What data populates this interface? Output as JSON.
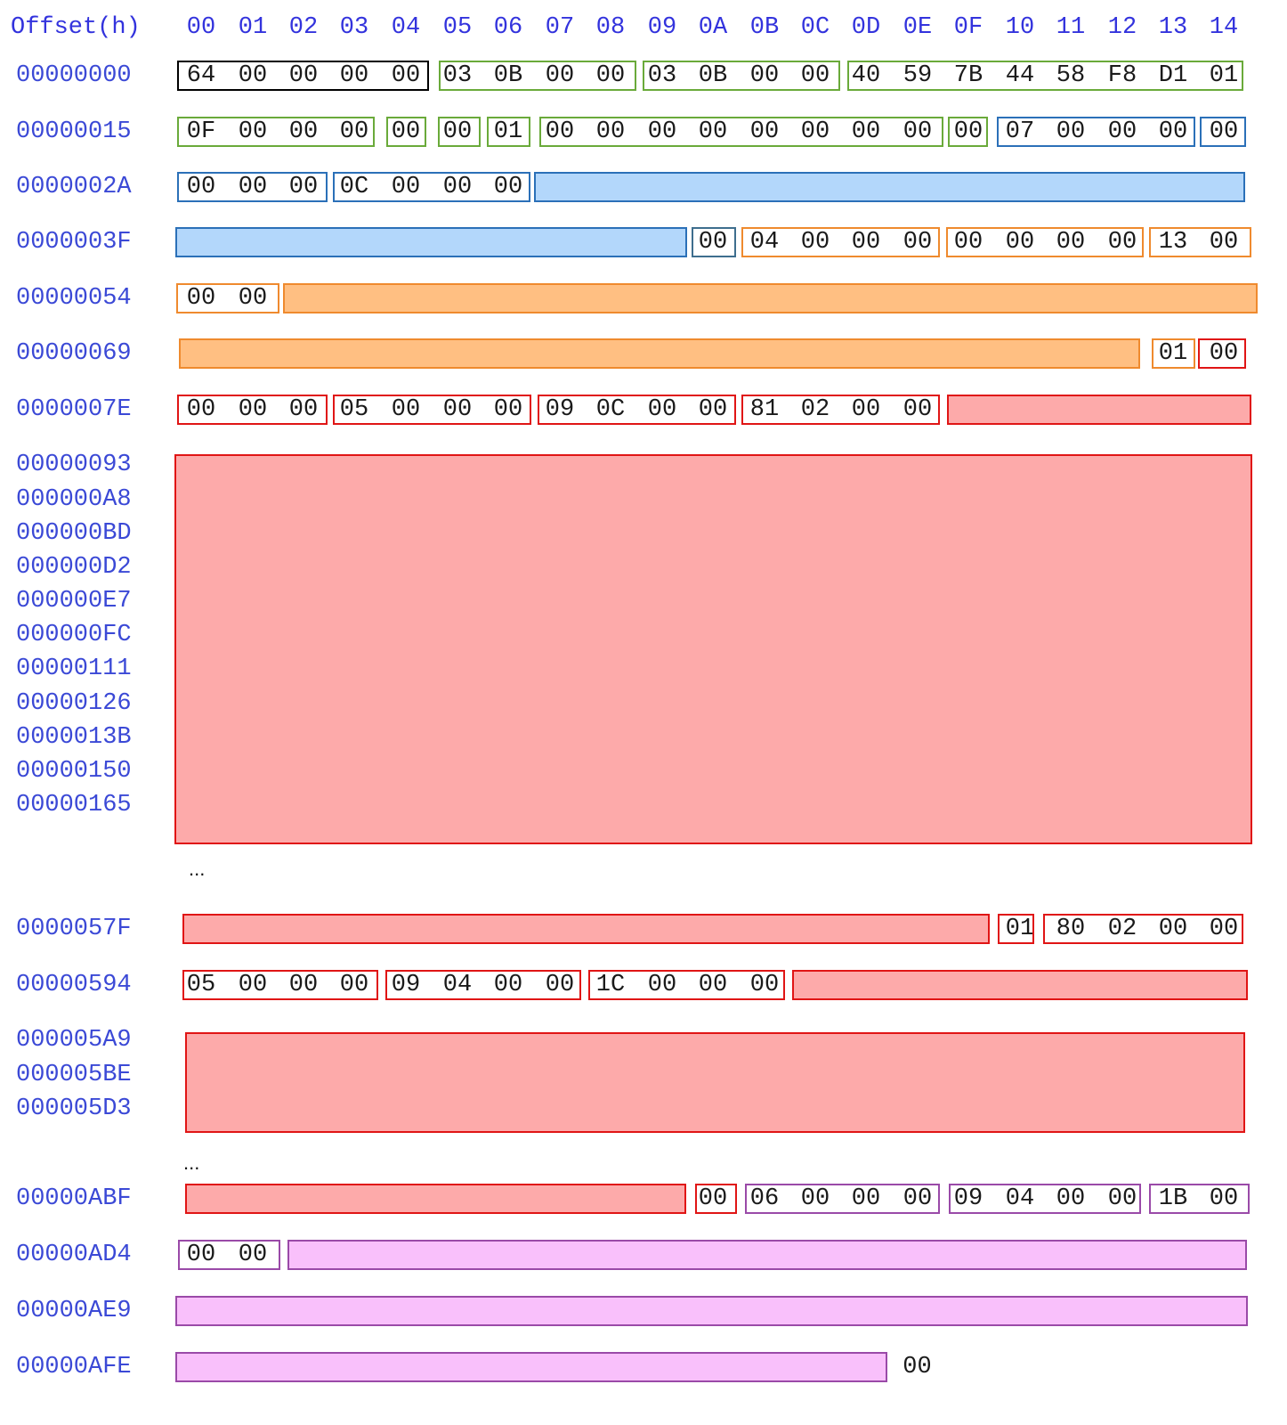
{
  "header": {
    "offset_label": "Offset(h)",
    "columns": [
      "00",
      "01",
      "02",
      "03",
      "04",
      "05",
      "06",
      "07",
      "08",
      "09",
      "0A",
      "0B",
      "0C",
      "0D",
      "0E",
      "0F",
      "10",
      "11",
      "12",
      "13",
      "14"
    ]
  },
  "ellipsis": "...",
  "rows": [
    {
      "offsets": [
        "00000000"
      ],
      "segments": [
        {
          "kind": "box",
          "color": "black",
          "bytes": "64 00 00 00 00"
        },
        {
          "kind": "box",
          "color": "green",
          "bytes": "03 0B 00 00"
        },
        {
          "kind": "box",
          "color": "green",
          "bytes": "03 0B 00 00"
        },
        {
          "kind": "box",
          "color": "green",
          "bytes": "40 59 7B 44 58 F8 D1 01"
        }
      ]
    },
    {
      "offsets": [
        "00000015"
      ],
      "segments": [
        {
          "kind": "box",
          "color": "green",
          "bytes": "0F 00 00 00"
        },
        {
          "kind": "box",
          "color": "green",
          "bytes": "00"
        },
        {
          "kind": "box",
          "color": "green",
          "bytes": "00"
        },
        {
          "kind": "box",
          "color": "green",
          "bytes": "01"
        },
        {
          "kind": "box",
          "color": "green",
          "bytes": "00 00 00 00 00 00 00 00"
        },
        {
          "kind": "box",
          "color": "green",
          "bytes": "00"
        },
        {
          "kind": "box",
          "color": "blue",
          "bytes": "07 00 00 00"
        },
        {
          "kind": "box",
          "color": "blue",
          "bytes": "00"
        }
      ]
    },
    {
      "offsets": [
        "0000002A"
      ],
      "segments": [
        {
          "kind": "box",
          "color": "blue",
          "bytes": "00 00 00"
        },
        {
          "kind": "box",
          "color": "blue",
          "bytes": "0C 00 00 00"
        },
        {
          "kind": "fill",
          "color": "blue"
        }
      ]
    },
    {
      "offsets": [
        "0000003F"
      ],
      "segments": [
        {
          "kind": "fill",
          "color": "blue"
        },
        {
          "kind": "box",
          "color": "slate",
          "bytes": "00"
        },
        {
          "kind": "box",
          "color": "orange",
          "bytes": "04 00 00 00"
        },
        {
          "kind": "box",
          "color": "orange",
          "bytes": "00 00 00 00"
        },
        {
          "kind": "box",
          "color": "orange",
          "bytes": "13 00"
        }
      ]
    },
    {
      "offsets": [
        "00000054"
      ],
      "segments": [
        {
          "kind": "box",
          "color": "orange",
          "bytes": "00 00"
        },
        {
          "kind": "fill",
          "color": "orange"
        }
      ]
    },
    {
      "offsets": [
        "00000069"
      ],
      "segments": [
        {
          "kind": "fill",
          "color": "orange"
        },
        {
          "kind": "box",
          "color": "orange",
          "bytes": "01"
        },
        {
          "kind": "box",
          "color": "red",
          "bytes": "00"
        }
      ]
    },
    {
      "offsets": [
        "0000007E"
      ],
      "segments": [
        {
          "kind": "box",
          "color": "red",
          "bytes": "00 00 00"
        },
        {
          "kind": "box",
          "color": "red",
          "bytes": "05 00 00 00"
        },
        {
          "kind": "box",
          "color": "red",
          "bytes": "09 0C 00 00"
        },
        {
          "kind": "box",
          "color": "red",
          "bytes": "81 02 00 00"
        },
        {
          "kind": "fill",
          "color": "red"
        }
      ]
    },
    {
      "offsets": [
        "00000093",
        "000000A8",
        "000000BD",
        "000000D2",
        "000000E7",
        "000000FC",
        "00000111",
        "00000126",
        "0000013B",
        "00000150",
        "00000165"
      ],
      "segments": [
        {
          "kind": "fill",
          "color": "red"
        }
      ]
    },
    {
      "offsets": [
        "0000057F"
      ],
      "segments": [
        {
          "kind": "fill",
          "color": "red"
        },
        {
          "kind": "box",
          "color": "red",
          "bytes": "01"
        },
        {
          "kind": "box",
          "color": "red",
          "bytes": "80 02 00 00"
        }
      ]
    },
    {
      "offsets": [
        "00000594"
      ],
      "segments": [
        {
          "kind": "box",
          "color": "red",
          "bytes": "05 00 00 00"
        },
        {
          "kind": "box",
          "color": "red",
          "bytes": "09 04 00 00"
        },
        {
          "kind": "box",
          "color": "red",
          "bytes": "1C 00 00 00"
        },
        {
          "kind": "fill",
          "color": "red"
        }
      ]
    },
    {
      "offsets": [
        "000005A9",
        "000005BE",
        "000005D3"
      ],
      "segments": [
        {
          "kind": "fill",
          "color": "red"
        }
      ]
    },
    {
      "offsets": [
        "00000ABF"
      ],
      "segments": [
        {
          "kind": "fill",
          "color": "red"
        },
        {
          "kind": "box",
          "color": "red",
          "bytes": "00"
        },
        {
          "kind": "box",
          "color": "purple",
          "bytes": "06 00 00 00"
        },
        {
          "kind": "box",
          "color": "purple",
          "bytes": "09 04 00 00"
        },
        {
          "kind": "box",
          "color": "purple",
          "bytes": "1B 00"
        }
      ]
    },
    {
      "offsets": [
        "00000AD4"
      ],
      "segments": [
        {
          "kind": "box",
          "color": "purple",
          "bytes": "00 00"
        },
        {
          "kind": "fill",
          "color": "purple"
        }
      ]
    },
    {
      "offsets": [
        "00000AE9"
      ],
      "segments": [
        {
          "kind": "fill",
          "color": "purple"
        }
      ]
    },
    {
      "offsets": [
        "00000AFE"
      ],
      "segments": [
        {
          "kind": "fill",
          "color": "purple"
        },
        {
          "kind": "plain",
          "bytes": "00"
        }
      ]
    }
  ]
}
